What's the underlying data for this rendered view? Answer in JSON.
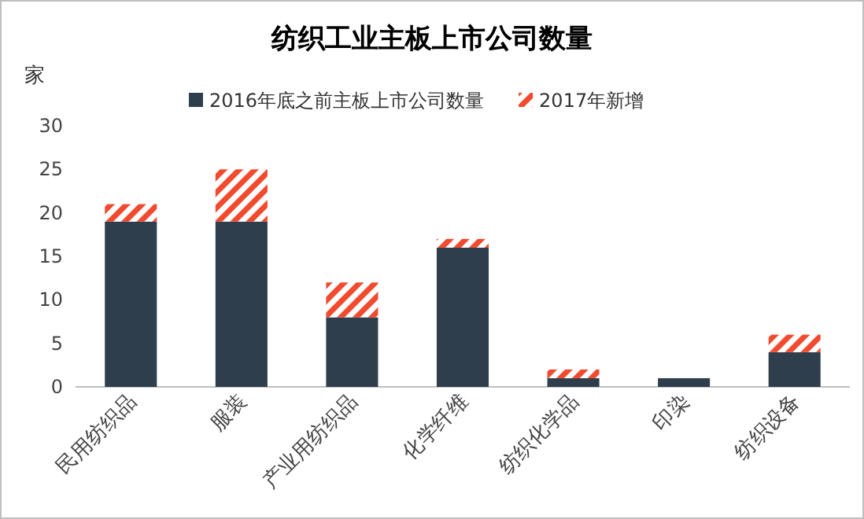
{
  "chart_data": {
    "type": "bar",
    "title": "纺织工业主板上市公司数量",
    "ylabel": "家",
    "stacked": true,
    "legend": "top",
    "categories": [
      "民用纺织品",
      "服装",
      "产业用纺织品",
      "化学纤维",
      "纺织化学品",
      "印染",
      "纺织设备"
    ],
    "series": [
      {
        "name": "2016年底之前主板上市公司数量",
        "color": "#2e3e4c",
        "values": [
          19,
          19,
          8,
          16,
          1,
          1,
          4
        ]
      },
      {
        "name": "2017年新增",
        "color": "#f24a2e",
        "values": [
          2,
          6,
          4,
          1,
          1,
          0,
          2
        ]
      }
    ],
    "ylim": [
      0,
      30
    ],
    "yticks": [
      0,
      5,
      10,
      15,
      20,
      25,
      30
    ]
  }
}
